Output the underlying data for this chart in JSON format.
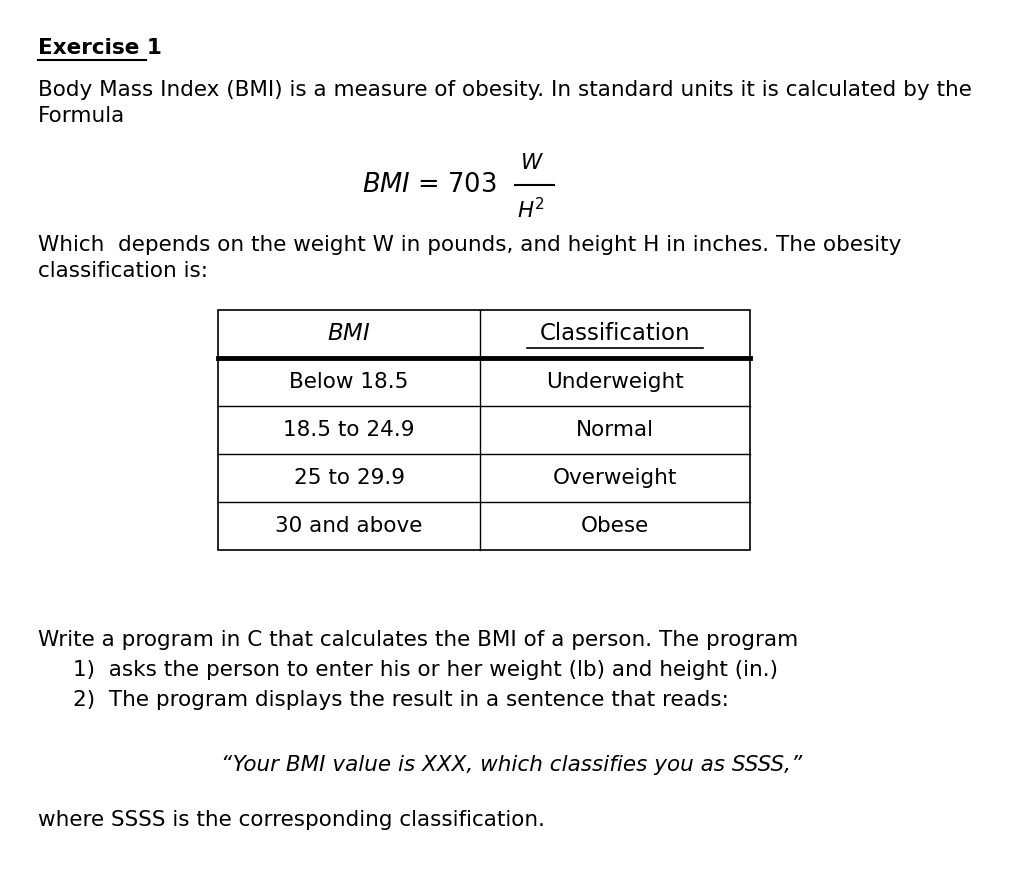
{
  "background_color": "#ffffff",
  "title": "Exercise 1",
  "para1_line1": "Body Mass Index (BMI) is a measure of obesity. In standard units it is calculated by the",
  "para1_line2": "Formula",
  "para2_line1": "Which  depends on the weight W in pounds, and height H in inches. The obesity",
  "para2_line2": "classification is:",
  "table_headers": [
    "BMI",
    "Classification"
  ],
  "table_rows": [
    [
      "Below 18.5",
      "Underweight"
    ],
    [
      "18.5 to 24.9",
      "Normal"
    ],
    [
      "25 to 29.9",
      "Overweight"
    ],
    [
      "30 and above",
      "Obese"
    ]
  ],
  "para3": "Write a program in C that calculates the BMI of a person. The program",
  "list_item1": "1)  asks the person to enter his or her weight (lb) and height (in.)",
  "list_item2": "2)  The program displays the result in a sentence that reads:",
  "quote": "“Your BMI value is XXX, which classifies you as SSSS,”",
  "para4": "where SSSS is the corresponding classification.",
  "font_size": 15.5,
  "title_font_size": 15.5,
  "table_font_size": 15.5
}
